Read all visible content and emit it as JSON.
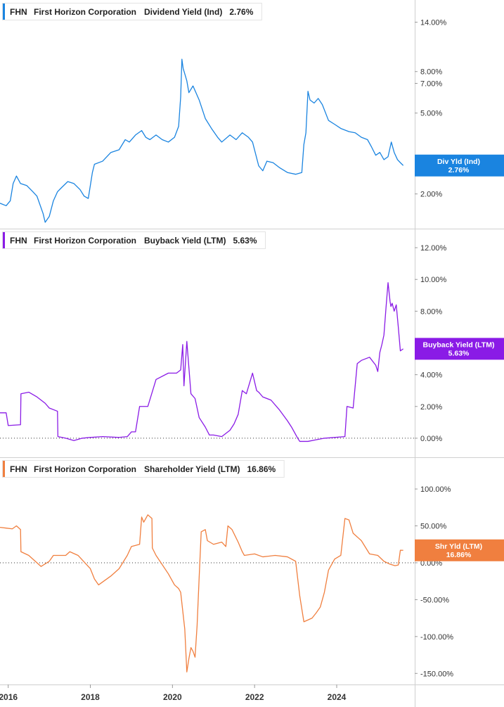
{
  "chart_data": [
    {
      "type": "line",
      "ticker": "FHN",
      "company": "First Horizon Corporation",
      "metric": "Dividend Yield (Ind)",
      "last_value_label": "2.76%",
      "badge": {
        "line1": "Div Yld (Ind)",
        "line2": "2.76%"
      },
      "color": "#1a84e0",
      "yscale": "log",
      "ylim": [
        1.35,
        18
      ],
      "yticks": [
        2,
        5,
        7,
        8,
        14
      ],
      "ytick_labels": [
        "2.00%",
        "5.00%",
        "7.00%",
        "8.00%",
        "14.00%"
      ],
      "zero_line": false,
      "series": [
        {
          "x": [
            2015.8,
            2015.95,
            2016.05,
            2016.12,
            2016.2,
            2016.3,
            2016.45,
            2016.6,
            2016.7,
            2016.85,
            2016.9,
            2017.0,
            2017.1,
            2017.2,
            2017.3,
            2017.45,
            2017.6,
            2017.75,
            2017.85,
            2017.95,
            2018.05,
            2018.1,
            2018.3,
            2018.5,
            2018.7,
            2018.85,
            2018.95,
            2019.1,
            2019.25,
            2019.35,
            2019.45,
            2019.6,
            2019.75,
            2019.9,
            2020.05,
            2020.15,
            2020.2,
            2020.23,
            2020.26,
            2020.3,
            2020.35,
            2020.4,
            2020.5,
            2020.65,
            2020.8,
            2020.95,
            2021.1,
            2021.2,
            2021.4,
            2021.55,
            2021.7,
            2021.85,
            2021.95,
            2022.1,
            2022.2,
            2022.3,
            2022.45,
            2022.6,
            2022.8,
            2023.0,
            2023.15,
            2023.2,
            2023.25,
            2023.3,
            2023.35,
            2023.45,
            2023.55,
            2023.65,
            2023.8,
            2023.95,
            2024.1,
            2024.3,
            2024.45,
            2024.6,
            2024.75,
            2024.85,
            2024.95,
            2025.05,
            2025.15,
            2025.25,
            2025.33,
            2025.4,
            2025.48,
            2025.55,
            2025.62
          ],
          "y": [
            1.8,
            1.75,
            1.85,
            2.25,
            2.45,
            2.25,
            2.2,
            2.05,
            1.95,
            1.6,
            1.45,
            1.55,
            1.85,
            2.05,
            2.15,
            2.3,
            2.25,
            2.1,
            1.95,
            1.9,
            2.55,
            2.8,
            2.9,
            3.2,
            3.3,
            3.7,
            3.6,
            3.9,
            4.1,
            3.8,
            3.7,
            3.9,
            3.7,
            3.6,
            3.8,
            4.3,
            6.0,
            9.2,
            8.3,
            7.8,
            7.2,
            6.3,
            6.8,
            5.8,
            4.7,
            4.2,
            3.8,
            3.6,
            3.9,
            3.7,
            4.0,
            3.8,
            3.6,
            2.75,
            2.6,
            2.9,
            2.85,
            2.7,
            2.55,
            2.5,
            2.55,
            3.5,
            4.0,
            6.4,
            5.8,
            5.6,
            5.9,
            5.5,
            4.6,
            4.4,
            4.2,
            4.05,
            4.0,
            3.8,
            3.7,
            3.4,
            3.1,
            3.2,
            2.95,
            3.05,
            3.6,
            3.2,
            2.95,
            2.85,
            2.76
          ]
        }
      ]
    },
    {
      "type": "line",
      "ticker": "FHN",
      "company": "First Horizon Corporation",
      "metric": "Buyback Yield (LTM)",
      "last_value_label": "5.63%",
      "badge": {
        "line1": "Buyback Yield (LTM)",
        "line2": "5.63%"
      },
      "color": "#8a1be6",
      "yscale": "linear",
      "ylim": [
        -1.2,
        13.2
      ],
      "yticks": [
        0,
        2,
        4,
        8,
        10,
        12
      ],
      "ytick_labels": [
        "0.00%",
        "2.00%",
        "4.00%",
        "8.00%",
        "10.00%",
        "12.00%"
      ],
      "zero_line": true,
      "series": [
        {
          "x": [
            2015.8,
            2015.95,
            2016.0,
            2016.3,
            2016.31,
            2016.5,
            2016.7,
            2016.9,
            2017.0,
            2017.2,
            2017.21,
            2017.4,
            2017.6,
            2017.8,
            2018.0,
            2018.3,
            2018.7,
            2018.9,
            2019.0,
            2019.1,
            2019.2,
            2019.4,
            2019.6,
            2019.9,
            2020.1,
            2020.2,
            2020.25,
            2020.28,
            2020.35,
            2020.45,
            2020.55,
            2020.6,
            2020.65,
            2020.8,
            2020.9,
            2021.0,
            2021.2,
            2021.4,
            2021.5,
            2021.6,
            2021.7,
            2021.8,
            2021.95,
            2022.05,
            2022.1,
            2022.2,
            2022.4,
            2022.6,
            2022.8,
            2022.9,
            2023.05,
            2023.1,
            2023.3,
            2023.5,
            2023.7,
            2023.95,
            2024.2,
            2024.25,
            2024.4,
            2024.5,
            2024.6,
            2024.8,
            2024.95,
            2025.0,
            2025.05,
            2025.1,
            2025.15,
            2025.2,
            2025.25,
            2025.3,
            2025.32,
            2025.35,
            2025.4,
            2025.45,
            2025.5,
            2025.55,
            2025.62
          ],
          "y": [
            1.6,
            1.6,
            0.8,
            0.85,
            2.8,
            2.9,
            2.6,
            2.2,
            1.9,
            1.7,
            0.1,
            0.0,
            -0.15,
            0.0,
            0.05,
            0.1,
            0.05,
            0.1,
            0.4,
            0.4,
            2.0,
            2.0,
            3.7,
            4.1,
            4.1,
            4.3,
            5.9,
            3.3,
            6.1,
            2.8,
            2.5,
            1.9,
            1.3,
            0.7,
            0.2,
            0.2,
            0.1,
            0.5,
            0.9,
            1.5,
            3.0,
            2.8,
            4.1,
            3.0,
            2.9,
            2.6,
            2.4,
            1.8,
            1.1,
            0.7,
            0.0,
            -0.2,
            -0.2,
            -0.1,
            0.0,
            0.05,
            0.1,
            2.0,
            1.9,
            4.7,
            4.9,
            5.1,
            4.6,
            4.2,
            5.4,
            5.9,
            6.5,
            8.2,
            9.8,
            8.6,
            8.3,
            8.5,
            8.0,
            8.4,
            7.0,
            5.5,
            5.63
          ]
        }
      ]
    },
    {
      "type": "line",
      "ticker": "FHN",
      "company": "First Horizon Corporation",
      "metric": "Shareholder Yield (LTM)",
      "last_value_label": "16.86%",
      "badge": {
        "line1": "Shr Yld (LTM)",
        "line2": "16.86%"
      },
      "color": "#f07f3f",
      "yscale": "linear",
      "ylim": [
        -165,
        143
      ],
      "yticks": [
        -150,
        -100,
        -50,
        0,
        50,
        100
      ],
      "ytick_labels": [
        "-150.00%",
        "-100.00%",
        "-50.00%",
        "0.00%",
        "50.00%",
        "100.00%"
      ],
      "zero_line": true,
      "series": [
        {
          "x": [
            2015.8,
            2015.95,
            2016.1,
            2016.2,
            2016.3,
            2016.31,
            2016.5,
            2016.6,
            2016.8,
            2017.0,
            2017.1,
            2017.4,
            2017.5,
            2017.7,
            2018.0,
            2018.1,
            2018.2,
            2018.5,
            2018.7,
            2018.9,
            2019.0,
            2019.2,
            2019.25,
            2019.3,
            2019.4,
            2019.5,
            2019.51,
            2019.6,
            2019.9,
            2020.05,
            2020.15,
            2020.2,
            2020.25,
            2020.3,
            2020.35,
            2020.4,
            2020.45,
            2020.5,
            2020.55,
            2020.6,
            2020.65,
            2020.7,
            2020.8,
            2020.85,
            2021.0,
            2021.2,
            2021.3,
            2021.35,
            2021.45,
            2021.6,
            2021.7,
            2021.75,
            2022.0,
            2022.2,
            2022.5,
            2022.8,
            2023.0,
            2023.1,
            2023.2,
            2023.4,
            2023.5,
            2023.6,
            2023.7,
            2023.8,
            2023.95,
            2024.1,
            2024.2,
            2024.3,
            2024.4,
            2024.6,
            2024.8,
            2025.0,
            2025.15,
            2025.3,
            2025.42,
            2025.5,
            2025.55,
            2025.62
          ],
          "y": [
            48,
            47,
            46,
            50,
            45,
            15,
            10,
            5,
            -5,
            2,
            10,
            10,
            15,
            10,
            -8,
            -22,
            -30,
            -18,
            -8,
            10,
            22,
            25,
            62,
            55,
            65,
            60,
            20,
            10,
            -15,
            -30,
            -35,
            -40,
            -65,
            -90,
            -148,
            -130,
            -115,
            -120,
            -128,
            -85,
            -20,
            42,
            45,
            30,
            25,
            28,
            22,
            50,
            45,
            28,
            15,
            10,
            12,
            8,
            10,
            8,
            2,
            -45,
            -80,
            -75,
            -68,
            -60,
            -40,
            -10,
            5,
            10,
            60,
            58,
            40,
            30,
            12,
            10,
            2,
            -2,
            -4,
            -3,
            17,
            16.86
          ]
        }
      ]
    }
  ],
  "x_axis": {
    "ticks": [
      2016,
      2018,
      2020,
      2022,
      2024
    ],
    "labels": [
      "2016",
      "2018",
      "2020",
      "2022",
      "2024"
    ],
    "xlim": [
      2015.8,
      2025.9
    ]
  }
}
